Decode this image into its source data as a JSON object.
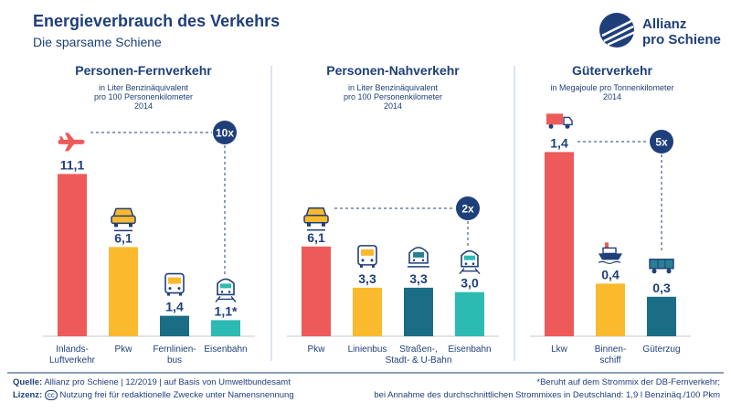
{
  "header": {
    "title": "Energieverbrauch des Verkehrs",
    "subtitle": "Die sparsame Schiene",
    "logo_line1": "Allianz",
    "logo_line2": "pro Schiene"
  },
  "colors": {
    "red": "#ee5a5a",
    "yellow": "#fbb92e",
    "teal": "#1b6d85",
    "turquoise": "#2cbbb3",
    "navy": "#1f3f7a",
    "divider": "#b8cbe0",
    "axis": "#c7c7c7"
  },
  "chart_data": [
    {
      "type": "bar",
      "title": "Personen-Fernverkehr",
      "unit_line1": "in Liter Benzinäquivalent",
      "unit_line2": "pro 100 Personenkilometer",
      "year": "2014",
      "categories": [
        "Inlands-\nLuftverkehr",
        "Pkw",
        "Fernlinien-\nbus",
        "Eisenbahn"
      ],
      "values": [
        11.1,
        6.1,
        1.4,
        1.1
      ],
      "labels": [
        "11,1",
        "6,1",
        "1,4",
        "1,1*"
      ],
      "icons": [
        "plane-icon",
        "car-icon",
        "bus-icon",
        "train-icon"
      ],
      "ratio": "10x"
    },
    {
      "type": "bar",
      "title": "Personen-Nahverkehr",
      "unit_line1": "in Liter Benzinäquivalent",
      "unit_line2": "pro 100 Personenkilometer",
      "year": "2014",
      "categories": [
        "Pkw",
        "Linienbus",
        "Straßen-,\nStadt- & U-Bahn",
        "Eisenbahn"
      ],
      "values": [
        6.1,
        3.3,
        3.3,
        3.0
      ],
      "labels": [
        "6,1",
        "3,3",
        "3,3",
        "3,0"
      ],
      "icons": [
        "car-icon",
        "bus-icon",
        "tram-icon",
        "train-icon"
      ],
      "ratio": "2x"
    },
    {
      "type": "bar",
      "title": "Güterverkehr",
      "unit_line1": "in Megajoule pro Tonnenkilometer",
      "unit_line2": "",
      "year": "2014",
      "categories": [
        "Lkw",
        "Binnen-\nschiff",
        "Güterzug"
      ],
      "values": [
        1.4,
        0.4,
        0.3
      ],
      "labels": [
        "1,4",
        "0,4",
        "0,3"
      ],
      "icons": [
        "truck-icon",
        "ship-icon",
        "freight-wagon-icon"
      ],
      "ratio": "5x"
    }
  ],
  "footer": {
    "source_label": "Quelle:",
    "source_text": "Allianz pro Schiene | 12/2019 | auf Basis von Umweltbundesamt",
    "license_label": "Lizenz:",
    "license_badge": "cc",
    "license_text": "Nutzung frei für redaktionelle Zwecke unter Namensnennung",
    "note_line1": "*Beruht auf dem Strommix der DB-Fernverkehr;",
    "note_line2": "bei Annahme des durchschnittlichen Strommixes in Deutschland: 1,9 l Benzinäq./100 Pkm"
  }
}
